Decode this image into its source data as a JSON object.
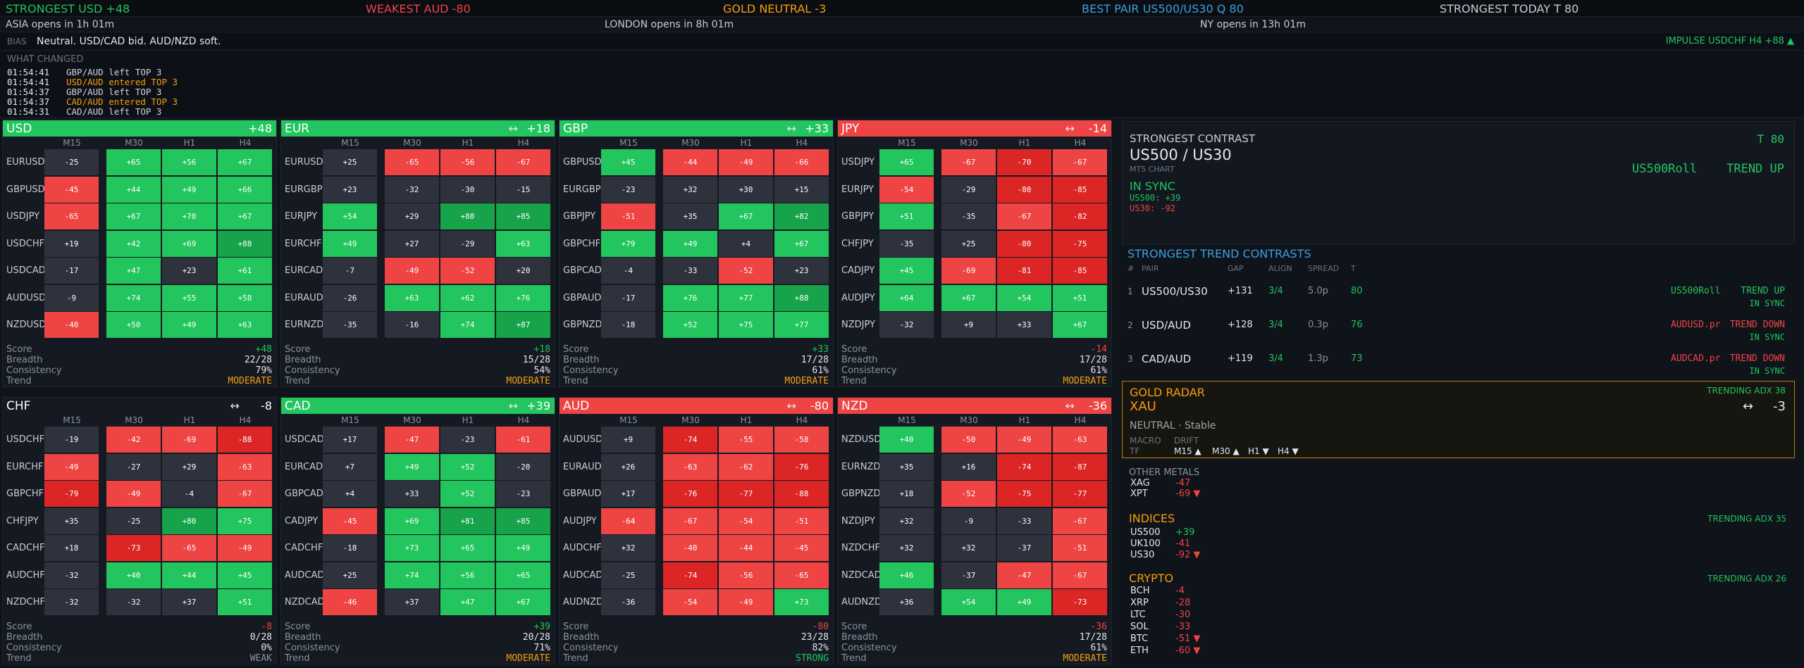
{
  "colors": {
    "green": "#22c55e",
    "red": "#ef4444",
    "orange": "#f59e0b",
    "blue": "#3b9fe0",
    "neutral_cell": "#2d323c"
  },
  "topbar": {
    "strongest": "STRONGEST  USD  +48",
    "weakest": "WEAKEST  AUD  -80",
    "gold": "GOLD NEUTRAL  -3",
    "best_pair": "BEST PAIR  US500/US30  Q 80",
    "strongest_today": "STRONGEST TODAY  T 80"
  },
  "sessions": {
    "asia": "ASIA   opens in 1h 01m",
    "london": "LONDON   opens in 8h 01m",
    "ny": "NY   opens in 13h 01m"
  },
  "bias": {
    "label": "BIAS",
    "text": "Neutral. USD/CAD bid. AUD/NZD soft.",
    "impulse": "IMPULSE  USDCHF H4  +88 ▲"
  },
  "what_changed": {
    "title": "WHAT CHANGED",
    "events": [
      {
        "time": "01:54:41",
        "text": "GBP/AUD left TOP 3",
        "kind": "left"
      },
      {
        "time": "01:54:41",
        "text": "USD/AUD entered TOP 3",
        "kind": "entered"
      },
      {
        "time": "01:54:37",
        "text": "GBP/AUD left TOP 3",
        "kind": "left"
      },
      {
        "time": "01:54:37",
        "text": "CAD/AUD entered TOP 3",
        "kind": "entered"
      },
      {
        "time": "01:54:31",
        "text": "CAD/AUD left TOP 3",
        "kind": "left"
      }
    ]
  },
  "timeframes": [
    "M15",
    "M30",
    "H1",
    "H4"
  ],
  "stat_labels": [
    "Score",
    "Breadth",
    "Consistency",
    "Trend"
  ],
  "panels": [
    {
      "name": "USD",
      "score": "+48",
      "arrow": "",
      "head": "green",
      "rows": [
        {
          "pair": "EURUSD",
          "v": [
            "-25",
            "+65",
            "+56",
            "+67"
          ]
        },
        {
          "pair": "GBPUSD",
          "v": [
            "-45",
            "+44",
            "+49",
            "+66"
          ]
        },
        {
          "pair": "USDJPY",
          "v": [
            "-65",
            "+67",
            "+70",
            "+67"
          ]
        },
        {
          "pair": "USDCHF",
          "v": [
            "+19",
            "+42",
            "+69",
            "+88"
          ]
        },
        {
          "pair": "USDCAD",
          "v": [
            "-17",
            "+47",
            "+23",
            "+61"
          ]
        },
        {
          "pair": "AUDUSD",
          "v": [
            "-9",
            "+74",
            "+55",
            "+58"
          ]
        },
        {
          "pair": "NZDUSD",
          "v": [
            "-40",
            "+50",
            "+49",
            "+63"
          ]
        }
      ],
      "stats": [
        "+48",
        "22/28",
        "79%",
        "MODERATE"
      ]
    },
    {
      "name": "EUR",
      "score": "+18",
      "arrow": "↔",
      "head": "green",
      "rows": [
        {
          "pair": "EURUSD",
          "v": [
            "+25",
            "-65",
            "-56",
            "-67"
          ]
        },
        {
          "pair": "EURGBP",
          "v": [
            "+23",
            "-32",
            "-30",
            "-15"
          ]
        },
        {
          "pair": "EURJPY",
          "v": [
            "+54",
            "+29",
            "+80",
            "+85"
          ]
        },
        {
          "pair": "EURCHF",
          "v": [
            "+49",
            "+27",
            "-29",
            "+63"
          ]
        },
        {
          "pair": "EURCAD",
          "v": [
            "-7",
            "-49",
            "-52",
            "+20"
          ]
        },
        {
          "pair": "EURAUD",
          "v": [
            "-26",
            "+63",
            "+62",
            "+76"
          ]
        },
        {
          "pair": "EURNZD",
          "v": [
            "-35",
            "-16",
            "+74",
            "+87"
          ]
        }
      ],
      "stats": [
        "+18",
        "15/28",
        "54%",
        "MODERATE"
      ]
    },
    {
      "name": "GBP",
      "score": "+33",
      "arrow": "↔",
      "head": "green",
      "rows": [
        {
          "pair": "GBPUSD",
          "v": [
            "+45",
            "-44",
            "-49",
            "-66"
          ]
        },
        {
          "pair": "EURGBP",
          "v": [
            "-23",
            "+32",
            "+30",
            "+15"
          ]
        },
        {
          "pair": "GBPJPY",
          "v": [
            "-51",
            "+35",
            "+67",
            "+82"
          ]
        },
        {
          "pair": "GBPCHF",
          "v": [
            "+79",
            "+49",
            "+4",
            "+67"
          ]
        },
        {
          "pair": "GBPCAD",
          "v": [
            "-4",
            "-33",
            "-52",
            "+23"
          ]
        },
        {
          "pair": "GBPAUD",
          "v": [
            "-17",
            "+76",
            "+77",
            "+88"
          ]
        },
        {
          "pair": "GBPNZD",
          "v": [
            "-18",
            "+52",
            "+75",
            "+77"
          ]
        }
      ],
      "stats": [
        "+33",
        "17/28",
        "61%",
        "MODERATE"
      ]
    },
    {
      "name": "JPY",
      "score": "-14",
      "arrow": "↔",
      "head": "red",
      "rows": [
        {
          "pair": "USDJPY",
          "v": [
            "+65",
            "-67",
            "-70",
            "-67"
          ]
        },
        {
          "pair": "EURJPY",
          "v": [
            "-54",
            "-29",
            "-80",
            "-85"
          ]
        },
        {
          "pair": "GBPJPY",
          "v": [
            "+51",
            "-35",
            "-67",
            "-82"
          ]
        },
        {
          "pair": "CHFJPY",
          "v": [
            "-35",
            "+25",
            "-80",
            "-75"
          ]
        },
        {
          "pair": "CADJPY",
          "v": [
            "+45",
            "-69",
            "-81",
            "-85"
          ]
        },
        {
          "pair": "AUDJPY",
          "v": [
            "+64",
            "+67",
            "+54",
            "+51"
          ]
        },
        {
          "pair": "NZDJPY",
          "v": [
            "-32",
            "+9",
            "+33",
            "+67"
          ]
        }
      ],
      "stats": [
        "-14",
        "17/28",
        "61%",
        "MODERATE"
      ]
    },
    {
      "name": "CHF",
      "score": "-8",
      "arrow": "↔",
      "head": "neutral",
      "rows": [
        {
          "pair": "USDCHF",
          "v": [
            "-19",
            "-42",
            "-69",
            "-88"
          ]
        },
        {
          "pair": "EURCHF",
          "v": [
            "-49",
            "-27",
            "+29",
            "-63"
          ]
        },
        {
          "pair": "GBPCHF",
          "v": [
            "-79",
            "-49",
            "-4",
            "-67"
          ]
        },
        {
          "pair": "CHFJPY",
          "v": [
            "+35",
            "-25",
            "+80",
            "+75"
          ]
        },
        {
          "pair": "CADCHF",
          "v": [
            "+18",
            "-73",
            "-65",
            "-49"
          ]
        },
        {
          "pair": "AUDCHF",
          "v": [
            "-32",
            "+40",
            "+44",
            "+45"
          ]
        },
        {
          "pair": "NZDCHF",
          "v": [
            "-32",
            "-32",
            "+37",
            "+51"
          ]
        }
      ],
      "stats": [
        "-8",
        "0/28",
        "0%",
        "WEAK"
      ]
    },
    {
      "name": "CAD",
      "score": "+39",
      "arrow": "↔",
      "head": "green",
      "rows": [
        {
          "pair": "USDCAD",
          "v": [
            "+17",
            "-47",
            "-23",
            "-61"
          ]
        },
        {
          "pair": "EURCAD",
          "v": [
            "+7",
            "+49",
            "+52",
            "-20"
          ]
        },
        {
          "pair": "GBPCAD",
          "v": [
            "+4",
            "+33",
            "+52",
            "-23"
          ]
        },
        {
          "pair": "CADJPY",
          "v": [
            "-45",
            "+69",
            "+81",
            "+85"
          ]
        },
        {
          "pair": "CADCHF",
          "v": [
            "-18",
            "+73",
            "+65",
            "+49"
          ]
        },
        {
          "pair": "AUDCAD",
          "v": [
            "+25",
            "+74",
            "+56",
            "+65"
          ]
        },
        {
          "pair": "NZDCAD",
          "v": [
            "-46",
            "+37",
            "+47",
            "+67"
          ]
        }
      ],
      "stats": [
        "+39",
        "20/28",
        "71%",
        "MODERATE"
      ]
    },
    {
      "name": "AUD",
      "score": "-80",
      "arrow": "↔",
      "head": "red",
      "rows": [
        {
          "pair": "AUDUSD",
          "v": [
            "+9",
            "-74",
            "-55",
            "-58"
          ]
        },
        {
          "pair": "EURAUD",
          "v": [
            "+26",
            "-63",
            "-62",
            "-76"
          ]
        },
        {
          "pair": "GBPAUD",
          "v": [
            "+17",
            "-76",
            "-77",
            "-88"
          ]
        },
        {
          "pair": "AUDJPY",
          "v": [
            "-64",
            "-67",
            "-54",
            "-51"
          ]
        },
        {
          "pair": "AUDCHF",
          "v": [
            "+32",
            "-40",
            "-44",
            "-45"
          ]
        },
        {
          "pair": "AUDCAD",
          "v": [
            "-25",
            "-74",
            "-56",
            "-65"
          ]
        },
        {
          "pair": "AUDNZD",
          "v": [
            "-36",
            "-54",
            "-49",
            "+73"
          ]
        }
      ],
      "stats": [
        "-80",
        "23/28",
        "82%",
        "STRONG"
      ]
    },
    {
      "name": "NZD",
      "score": "-36",
      "arrow": "↔",
      "head": "red",
      "rows": [
        {
          "pair": "NZDUSD",
          "v": [
            "+40",
            "-50",
            "-49",
            "-63"
          ]
        },
        {
          "pair": "EURNZD",
          "v": [
            "+35",
            "+16",
            "-74",
            "-87"
          ]
        },
        {
          "pair": "GBPNZD",
          "v": [
            "+18",
            "-52",
            "-75",
            "-77"
          ]
        },
        {
          "pair": "NZDJPY",
          "v": [
            "+32",
            "-9",
            "-33",
            "-67"
          ]
        },
        {
          "pair": "NZDCHF",
          "v": [
            "+32",
            "+32",
            "-37",
            "-51"
          ]
        },
        {
          "pair": "NZDCAD",
          "v": [
            "+46",
            "-37",
            "-47",
            "-67"
          ]
        },
        {
          "pair": "AUDNZD",
          "v": [
            "+36",
            "+54",
            "+49",
            "-73"
          ]
        }
      ],
      "stats": [
        "-36",
        "17/28",
        "61%",
        "MODERATE"
      ]
    }
  ],
  "strongest_contrast": {
    "title": "STRONGEST CONTRAST",
    "t_value": "T 80",
    "pair": "US500 / US30",
    "sub": "MT5 CHART",
    "sync": "IN SYNC",
    "a": "US500: +39",
    "b": "US30: -92",
    "symbol": "US500Roll",
    "trend": "TREND UP"
  },
  "trend_contrasts": {
    "title": "STRONGEST TREND CONTRASTS",
    "headers": [
      "#",
      "PAIR",
      "GAP",
      "ALIGN",
      "SPREAD",
      "T"
    ],
    "rows": [
      {
        "n": "1",
        "pair": "US500/US30",
        "gap": "+131",
        "align": "3/4",
        "spread": "5.0p",
        "t": "80",
        "symbol": "US500Roll",
        "trend": "TREND UP",
        "sync": "IN SYNC",
        "dir": "up"
      },
      {
        "n": "2",
        "pair": "USD/AUD",
        "gap": "+128",
        "align": "3/4",
        "spread": "0.3p",
        "t": "76",
        "symbol": "AUDUSD.pr",
        "trend": "TREND DOWN",
        "sync": "IN SYNC",
        "dir": "down"
      },
      {
        "n": "3",
        "pair": "CAD/AUD",
        "gap": "+119",
        "align": "3/4",
        "spread": "1.3p",
        "t": "73",
        "symbol": "AUDCAD.pr",
        "trend": "TREND DOWN",
        "sync": "IN SYNC",
        "dir": "down"
      }
    ]
  },
  "gold_radar": {
    "title": "GOLD RADAR",
    "symbol": "XAU",
    "status": "TRENDING   ADX 38",
    "arrow": "↔",
    "score": "-3",
    "state": "NEUTRAL  ·  Stable",
    "macro": "MACRO",
    "drift": "DRIFT",
    "tf_label": "TF",
    "tfs": [
      "M15 ▲",
      "M30 ▲",
      "H1 ▼",
      "H4 ▼"
    ]
  },
  "other_metals": {
    "title": "OTHER METALS",
    "rows": [
      {
        "name": "XAG",
        "value": "-47"
      },
      {
        "name": "XPT",
        "value": "-69 ▼"
      }
    ]
  },
  "indices": {
    "title": "INDICES",
    "status": "TRENDING   ADX 35",
    "rows": [
      {
        "name": "US500",
        "value": "+39"
      },
      {
        "name": "UK100",
        "value": "-41"
      },
      {
        "name": "US30",
        "value": "-92 ▼"
      }
    ]
  },
  "crypto": {
    "title": "CRYPTO",
    "status": "TRENDING   ADX 26",
    "rows": [
      {
        "name": "BCH",
        "value": "-4"
      },
      {
        "name": "XRP",
        "value": "-28"
      },
      {
        "name": "LTC",
        "value": "-30"
      },
      {
        "name": "SOL",
        "value": "-33"
      },
      {
        "name": "BTC",
        "value": "-51 ▼"
      },
      {
        "name": "ETH",
        "value": "-60 ▼"
      }
    ]
  }
}
